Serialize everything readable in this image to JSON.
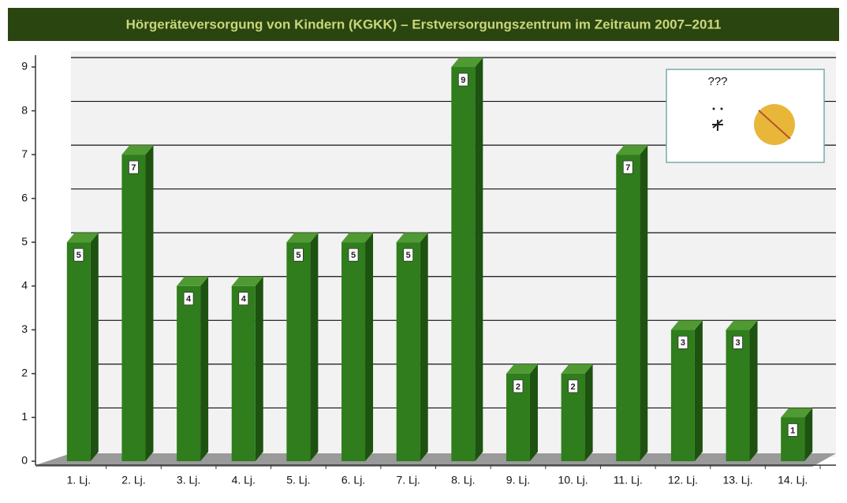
{
  "chart_data": {
    "type": "bar3d",
    "title": "Hörgeräteversorgung von Kindern (KGKK) – Erstversorgungszentrum im Zeitraum 2007–2011",
    "annotation": "???",
    "categories": [
      "1. Lj.",
      "2. Lj.",
      "3. Lj.",
      "4. Lj.",
      "5. Lj.",
      "6. Lj.",
      "7. Lj.",
      "8. Lj.",
      "9. Lj.",
      "10. Lj.",
      "11. Lj.",
      "12. Lj.",
      "13. Lj.",
      "14. Lj."
    ],
    "values": [
      5,
      7,
      4,
      4,
      5,
      5,
      5,
      9,
      2,
      2,
      7,
      3,
      3,
      1
    ],
    "color": "#2f7d1c",
    "ylim": [
      0,
      9
    ],
    "yticks": [
      0,
      1,
      2,
      3,
      4,
      5,
      6,
      7,
      8,
      9
    ],
    "grid": true
  }
}
